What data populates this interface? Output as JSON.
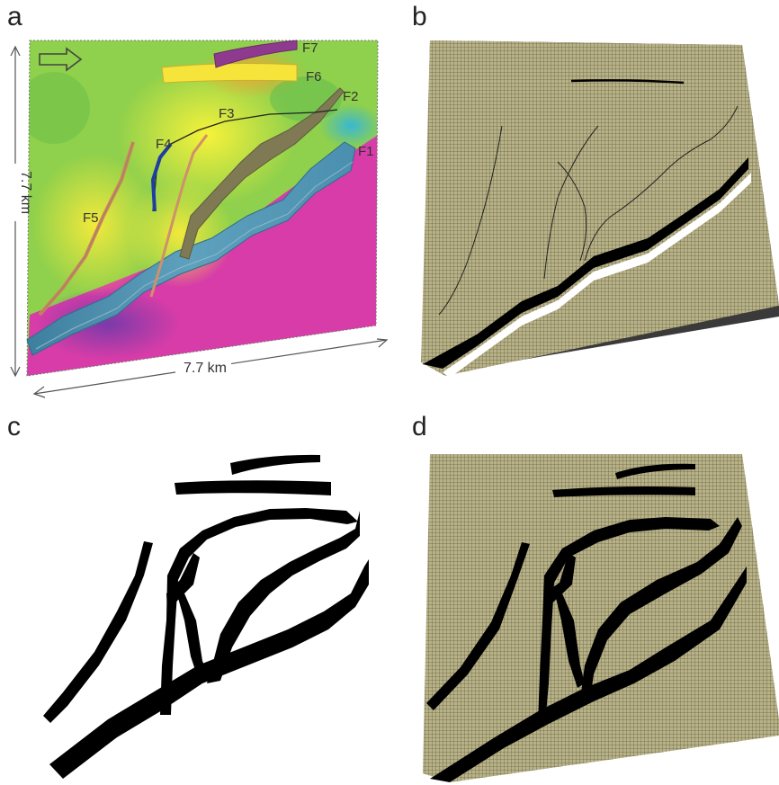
{
  "panels": {
    "a": {
      "letter": "a"
    },
    "b": {
      "letter": "b"
    },
    "c": {
      "letter": "c"
    },
    "d": {
      "letter": "d"
    }
  },
  "dimensions": {
    "side_left": "7.7 km",
    "side_bottom": "7.7 km"
  },
  "faults": [
    "F1",
    "F2",
    "F3",
    "F4",
    "F5",
    "F6",
    "F7"
  ],
  "colors": {
    "mesh": "#b3ad84",
    "mesh_line": "#655f3c",
    "fault_black": "#000000",
    "magenta": "#d43aa7",
    "yellow": "#f2ec3c",
    "green": "#7cc54e",
    "ramp_blue": "#4b8fb0"
  }
}
